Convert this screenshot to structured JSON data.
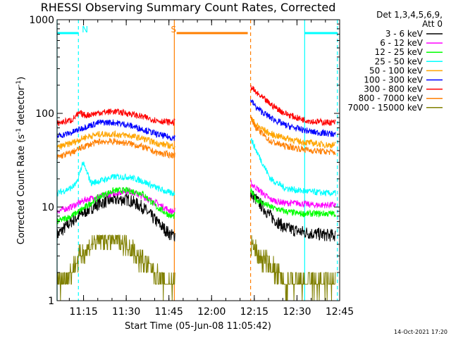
{
  "chart_data": {
    "type": "line",
    "title": "RHESSI Observing Summary Count Rates, Corrected",
    "xlabel": "Start Time (05-Jun-08 11:05:42)",
    "ylabel_main": "Corrected Count Rate (s",
    "ylabel_sup1": "-1",
    "ylabel_mid": " detector",
    "ylabel_sup2": "-1",
    "ylabel_end": ")",
    "y_scale": "log",
    "ylim": [
      1,
      1000
    ],
    "xlim_minutes": [
      0,
      99.3
    ],
    "x_ticks": [
      {
        "m": 9.3,
        "label": "11:15"
      },
      {
        "m": 24.3,
        "label": "11:30"
      },
      {
        "m": 39.3,
        "label": "11:45"
      },
      {
        "m": 54.3,
        "label": "12:00"
      },
      {
        "m": 69.3,
        "label": "12:15"
      },
      {
        "m": 84.3,
        "label": "12:30"
      },
      {
        "m": 99.3,
        "label": "12:45"
      }
    ],
    "y_ticks": [
      {
        "v": 1,
        "label": "1"
      },
      {
        "v": 10,
        "label": "10"
      },
      {
        "v": 100,
        "label": "100"
      },
      {
        "v": 1000,
        "label": "1000"
      }
    ],
    "legend_header": [
      "Det 1,3,4,5,6,9,",
      "Att 0"
    ],
    "legend_position": "right",
    "data_gap_minutes": [
      41.5,
      68.0
    ],
    "series": [
      {
        "name": "3 - 6 keV",
        "color": "#000000",
        "x": [
          0,
          5,
          10,
          15,
          20,
          25,
          30,
          35,
          40,
          41,
          68,
          70,
          75,
          80,
          85,
          90,
          95,
          98
        ],
        "y": [
          5,
          7,
          9,
          11,
          12,
          12,
          10,
          7,
          5,
          5,
          14,
          12,
          8,
          6,
          5.5,
          5.2,
          5,
          5
        ]
      },
      {
        "name": "6 - 12 keV",
        "color": "#ff00ff",
        "x": [
          0,
          5,
          10,
          15,
          20,
          25,
          30,
          35,
          40,
          41,
          68,
          70,
          75,
          80,
          85,
          90,
          95,
          98
        ],
        "y": [
          9,
          10,
          12,
          13,
          14,
          15,
          13,
          11,
          9,
          9,
          18,
          16,
          12,
          11,
          11,
          10.5,
          10.5,
          10.5
        ]
      },
      {
        "name": "12 - 25 keV",
        "color": "#00ff00",
        "x": [
          0,
          5,
          10,
          15,
          20,
          25,
          30,
          35,
          40,
          41,
          68,
          70,
          75,
          80,
          85,
          90,
          95,
          98
        ],
        "y": [
          7,
          8,
          10,
          13,
          15,
          15,
          14,
          10,
          8,
          8,
          15,
          12,
          10,
          9,
          8.5,
          8.5,
          8.5,
          8.5
        ]
      },
      {
        "name": "25 - 50 keV",
        "color": "#00ffff",
        "x": [
          0,
          5,
          7,
          9,
          12,
          15,
          20,
          25,
          30,
          35,
          40,
          41,
          68,
          70,
          75,
          80,
          85,
          90,
          95,
          98
        ],
        "y": [
          14,
          16,
          18,
          30,
          18,
          19,
          21,
          21,
          19,
          16,
          14,
          14,
          55,
          40,
          20,
          16,
          15,
          14.5,
          14,
          14
        ]
      },
      {
        "name": "50 - 100 keV",
        "color": "#ffa500",
        "x": [
          0,
          5,
          10,
          15,
          20,
          25,
          30,
          35,
          40,
          41,
          68,
          70,
          75,
          80,
          85,
          90,
          95,
          98
        ],
        "y": [
          43,
          48,
          56,
          60,
          60,
          58,
          54,
          48,
          45,
          45,
          90,
          75,
          60,
          55,
          50,
          48,
          46,
          46
        ]
      },
      {
        "name": "100 - 300 keV",
        "color": "#0000ff",
        "x": [
          0,
          5,
          10,
          15,
          20,
          25,
          30,
          35,
          40,
          41,
          68,
          70,
          75,
          80,
          85,
          90,
          95,
          98
        ],
        "y": [
          57,
          62,
          72,
          80,
          80,
          75,
          68,
          60,
          55,
          55,
          140,
          115,
          90,
          75,
          68,
          63,
          61,
          60
        ]
      },
      {
        "name": "300 - 800 keV",
        "color": "#ff0000",
        "x": [
          0,
          5,
          8,
          10,
          15,
          20,
          25,
          30,
          35,
          40,
          41,
          68,
          70,
          75,
          80,
          85,
          90,
          95,
          98
        ],
        "y": [
          78,
          85,
          100,
          95,
          102,
          105,
          100,
          92,
          84,
          80,
          80,
          195,
          165,
          125,
          100,
          88,
          82,
          80,
          80
        ]
      },
      {
        "name": "800 - 7000 keV",
        "color": "#ff7f00",
        "x": [
          0,
          5,
          10,
          15,
          20,
          25,
          30,
          35,
          40,
          41,
          68,
          70,
          75,
          80,
          85,
          90,
          95,
          98
        ],
        "y": [
          34,
          38,
          45,
          50,
          50,
          48,
          44,
          38,
          36,
          36,
          90,
          70,
          50,
          45,
          42,
          40,
          39,
          38
        ]
      },
      {
        "name": "7000 - 15000 keV",
        "color": "#808000",
        "x": [
          0,
          5,
          8,
          12,
          16,
          20,
          25,
          28,
          31,
          34,
          38,
          41,
          68,
          71,
          74,
          77,
          80,
          84,
          88,
          92,
          96,
          98
        ],
        "y": [
          1.5,
          2,
          3,
          4,
          4.5,
          4.5,
          4,
          3,
          2.5,
          2,
          1.5,
          1.5,
          4,
          3,
          2.5,
          2,
          1.5,
          1.5,
          1.5,
          1.5,
          1.5,
          1.5
        ]
      }
    ],
    "flag_bars": [
      {
        "label": "",
        "color": "#00ffff",
        "x_start": 0,
        "x_end": 7.5
      },
      {
        "label": "N",
        "color": "#00ffff",
        "label_x": 8.7
      },
      {
        "label": "S",
        "color": "#ff7f00",
        "label_x": 40.0
      },
      {
        "label": "",
        "color": "#ff7f00",
        "x_start": 42.0,
        "x_end": 67.0
      },
      {
        "label": "",
        "color": "#00ffff",
        "x_start": 87.0,
        "x_end": 98.5
      }
    ],
    "vertical_markers": [
      {
        "x": 0.0,
        "color": "#00ffff",
        "style": "solid"
      },
      {
        "x": 7.5,
        "color": "#00ffff",
        "style": "dashed"
      },
      {
        "x": 41.2,
        "color": "#ff7f00",
        "style": "solid"
      },
      {
        "x": 68.0,
        "color": "#ff7f00",
        "style": "dashed"
      },
      {
        "x": 87.0,
        "color": "#00ffff",
        "style": "solid"
      },
      {
        "x": 98.5,
        "color": "#00ffff",
        "style": "dashed"
      }
    ],
    "timestamp": "14-Oct-2021 17:20"
  }
}
